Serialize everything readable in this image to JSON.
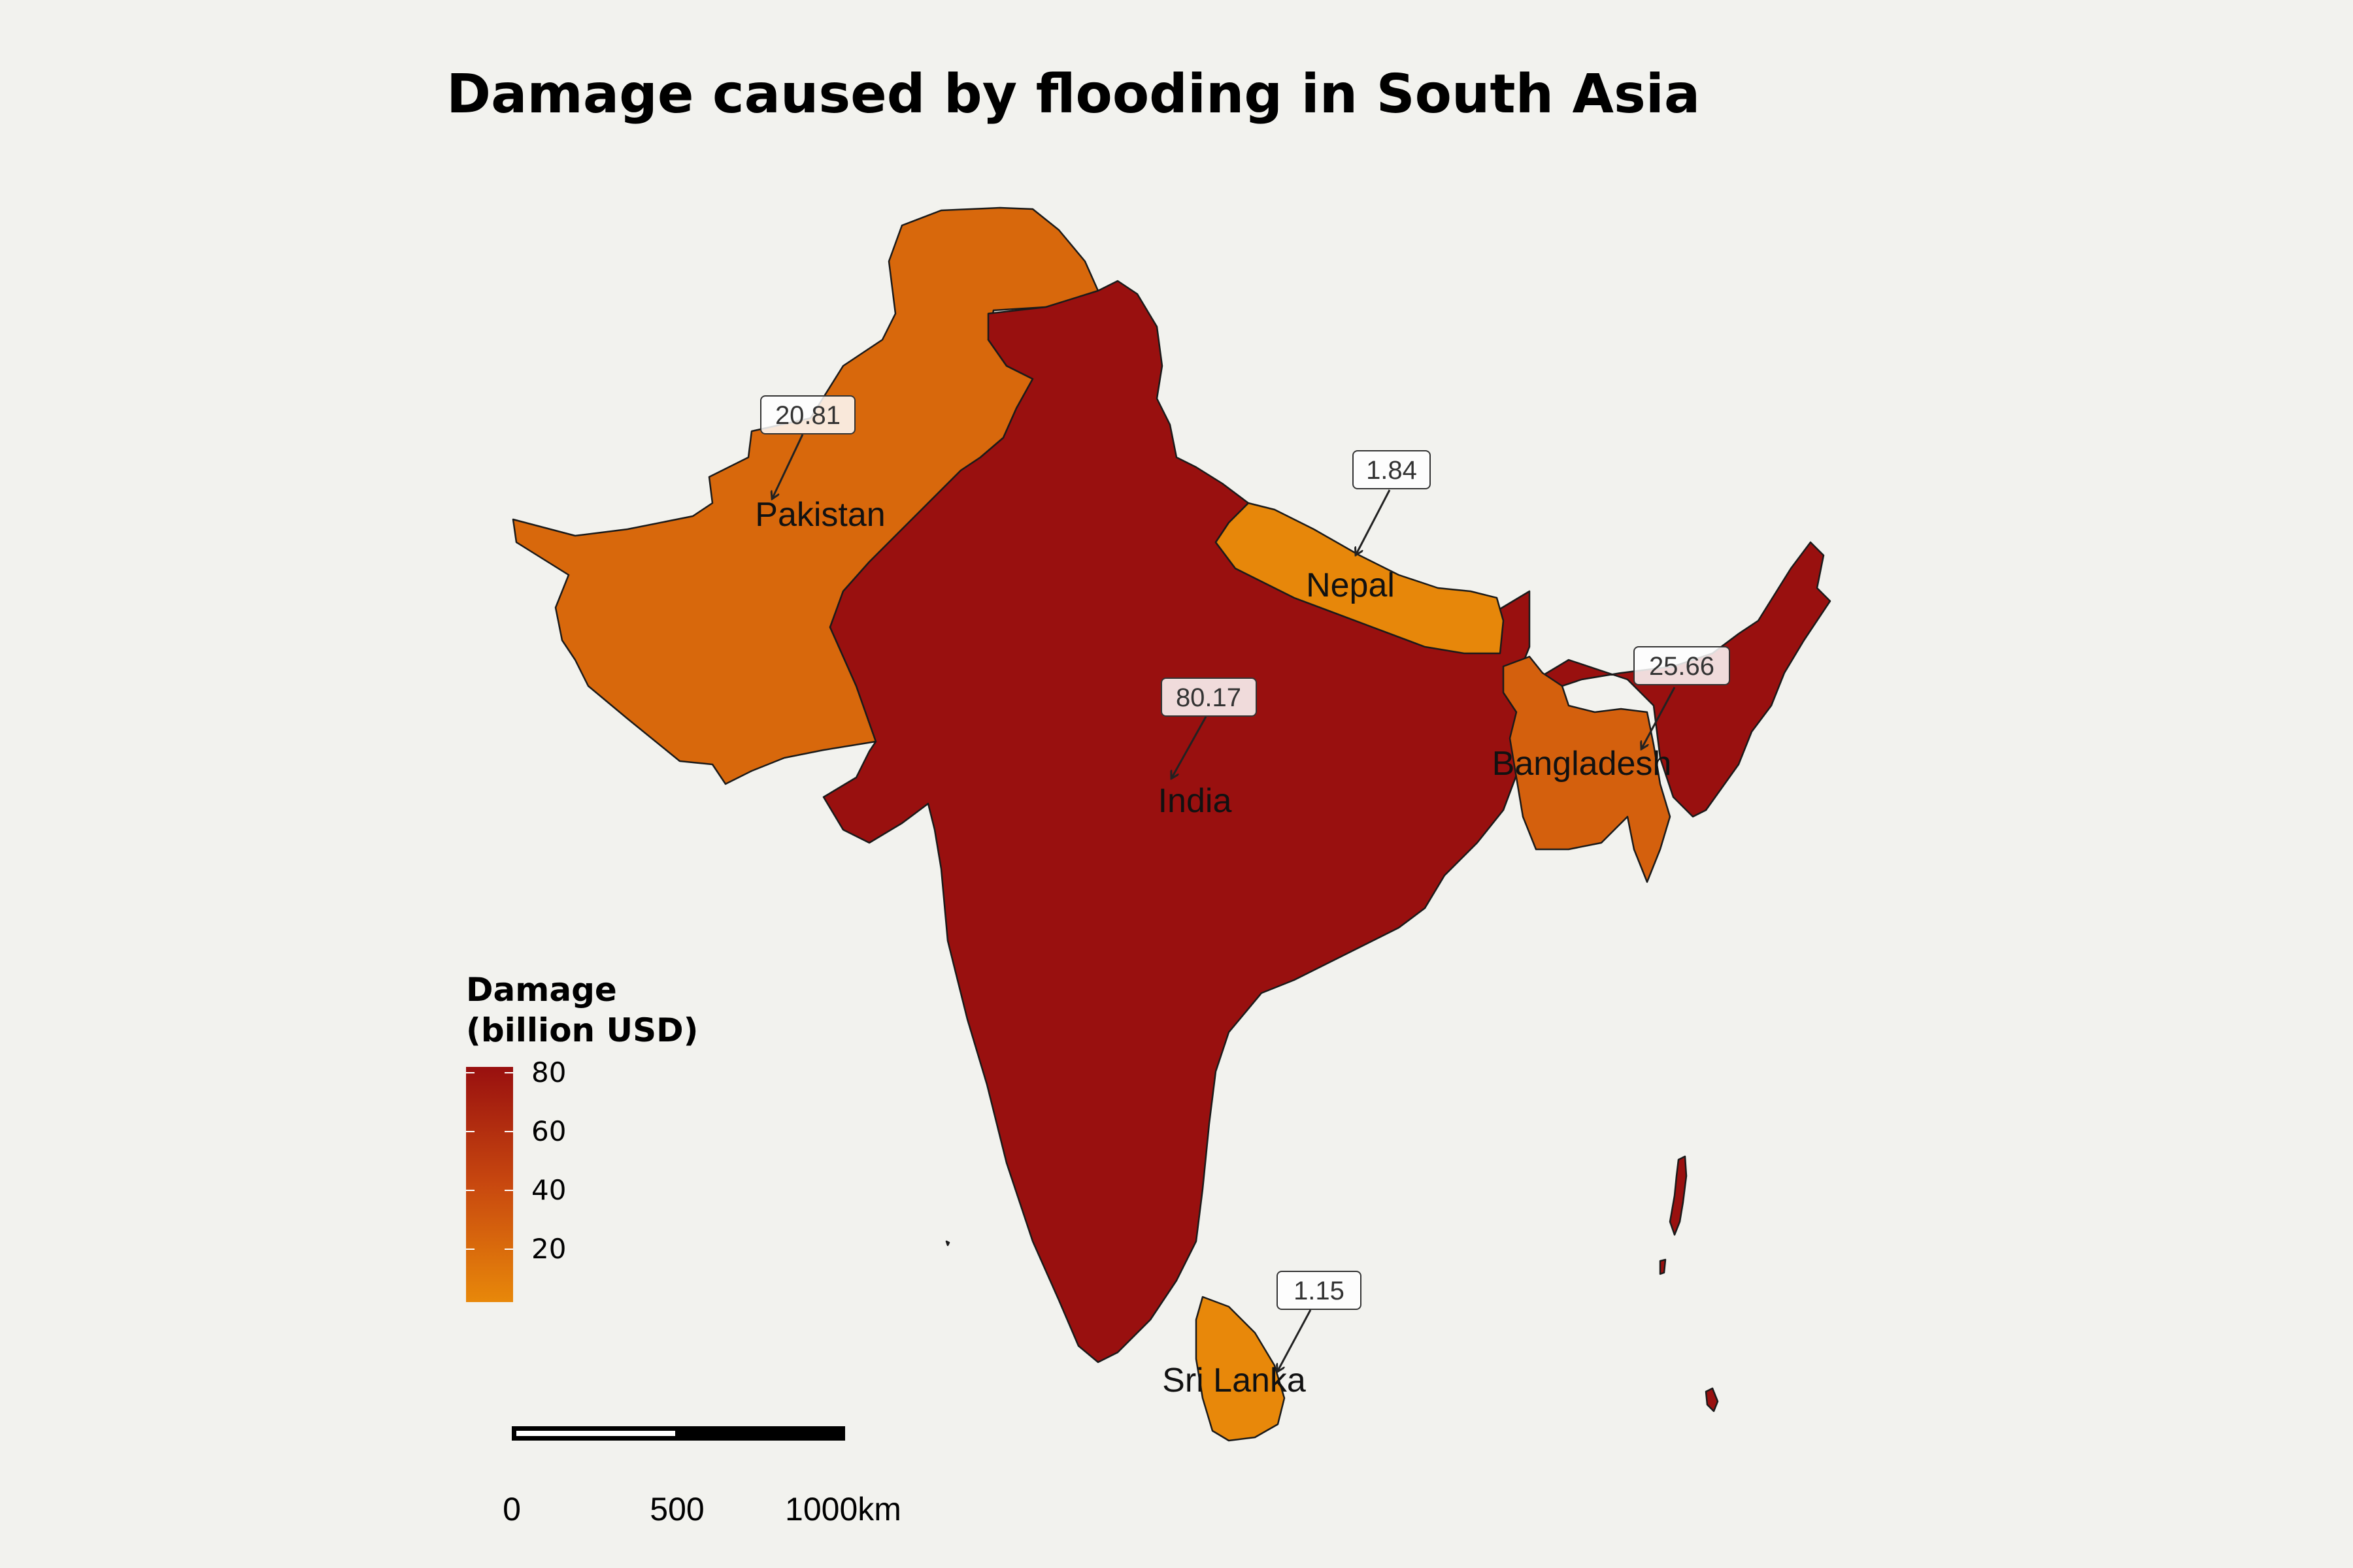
{
  "title": "Damage caused by flooding in South Asia",
  "legend": {
    "title_line1": "Damage",
    "title_line2": "(billion USD)",
    "ticks": [
      "80",
      "60",
      "40",
      "20"
    ],
    "tick_values": [
      80,
      60,
      40,
      20
    ],
    "range": [
      1.15,
      80.17
    ],
    "color_low": "#e8880a",
    "color_high": "#99100f"
  },
  "regions": [
    {
      "id": "pakistan",
      "name": "Pakistan",
      "damage": 20.81,
      "label": "20.81"
    },
    {
      "id": "india",
      "name": "India",
      "damage": 80.17,
      "label": "80.17"
    },
    {
      "id": "nepal",
      "name": "Nepal",
      "damage": 1.84,
      "label": "1.84"
    },
    {
      "id": "bangladesh",
      "name": "Bangladesh",
      "damage": 25.66,
      "label": "25.66"
    },
    {
      "id": "sri-lanka",
      "name": "Sri Lanka",
      "damage": 1.15,
      "label": "1.15"
    }
  ],
  "scale_bar": {
    "labels": [
      "0",
      "500",
      "1000km"
    ]
  }
}
